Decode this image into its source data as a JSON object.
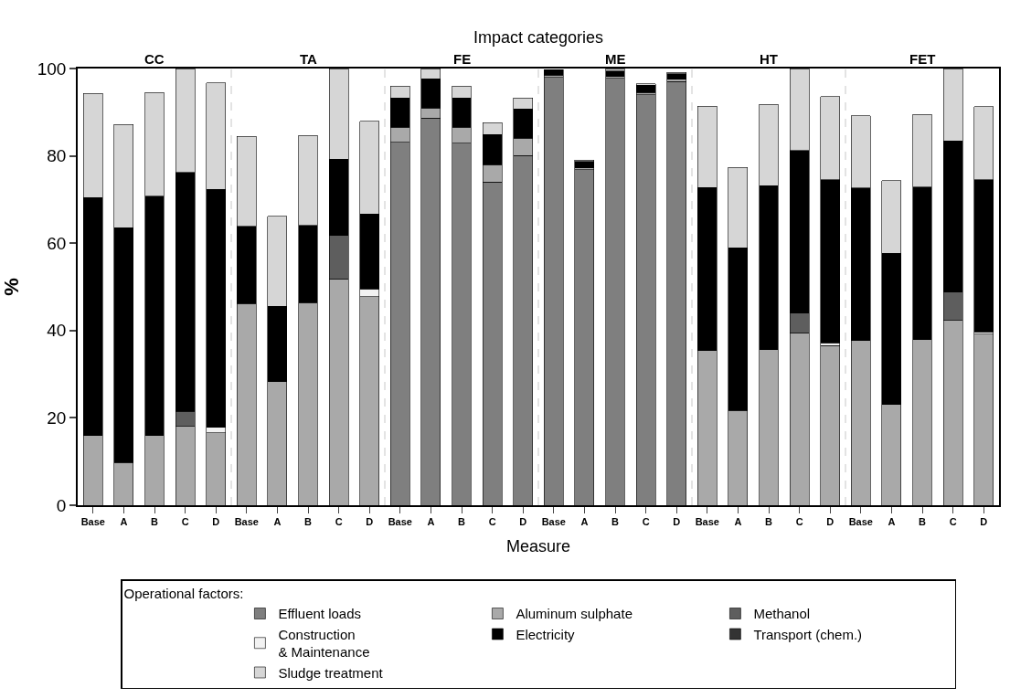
{
  "chart_data": {
    "type": "bar",
    "stacked": true,
    "x2label": "Impact categories",
    "xlabel": "Measure",
    "ylabel": "%",
    "legend_title": "Operational factors:",
    "categories": [
      "Base",
      "A",
      "B",
      "C",
      "D",
      "Base",
      "A",
      "B",
      "C",
      "D",
      "Base",
      "A",
      "B",
      "C",
      "D",
      "Base",
      "A",
      "B",
      "C",
      "D",
      "Base",
      "A",
      "B",
      "C",
      "D",
      "Base",
      "A",
      "B",
      "C",
      "D"
    ],
    "annotations": [
      "CC",
      "TA",
      "FE",
      "ME",
      "HT",
      "FET"
    ],
    "ylim": [
      0,
      100
    ],
    "yticks": [
      0,
      20,
      40,
      60,
      80,
      100
    ],
    "grid": false,
    "legend": "bottom",
    "series": [
      {
        "name": "Effluent loads",
        "color": "#7f7f7f",
        "values": [
          null,
          null,
          null,
          null,
          null,
          null,
          null,
          null,
          null,
          null,
          83.1,
          88.7,
          82.9,
          74,
          80.1,
          98,
          76.8,
          97.7,
          94,
          97,
          null,
          null,
          null,
          null,
          null,
          null,
          null,
          null,
          null,
          null
        ]
      },
      {
        "name": "Aluminum sulphate",
        "color": "#a9a9a9",
        "values": [
          16,
          9.8,
          16,
          18,
          16.6,
          46.2,
          28.3,
          46.4,
          51.8,
          47.8,
          3.5,
          2.3,
          3.7,
          4,
          3.9,
          0.5,
          0.4,
          0.5,
          0.5,
          0.5,
          35.4,
          21.7,
          35.6,
          39.5,
          36.6,
          37.7,
          23.1,
          37.9,
          42.3,
          39.2
        ]
      },
      {
        "name": "Methanol",
        "color": "#5e5e5e",
        "values": [
          null,
          null,
          null,
          3.5,
          null,
          null,
          null,
          null,
          10,
          null,
          null,
          null,
          null,
          null,
          null,
          null,
          null,
          null,
          null,
          null,
          null,
          null,
          null,
          4.5,
          null,
          null,
          null,
          null,
          6.5,
          null
        ]
      },
      {
        "name": "Construction\n& Maintenance",
        "color": "#f2f2f2",
        "values": [
          null,
          null,
          null,
          null,
          1.2,
          null,
          null,
          null,
          null,
          1.7,
          null,
          null,
          null,
          null,
          null,
          null,
          null,
          null,
          null,
          null,
          null,
          null,
          null,
          null,
          0.6,
          null,
          null,
          null,
          null,
          0.5
        ]
      },
      {
        "name": "Electricity",
        "color": "#000000",
        "values": [
          54.5,
          53.7,
          54.8,
          54.7,
          54.5,
          17.7,
          17.3,
          17.7,
          17.4,
          17.2,
          6.7,
          6.6,
          6.7,
          6.9,
          6.7,
          1.2,
          1.5,
          1.2,
          1.7,
          1.3,
          37.4,
          37.2,
          37.6,
          37.2,
          37.3,
          34.9,
          34.6,
          35,
          34.6,
          34.8
        ]
      },
      {
        "name": "Transport (chem.)",
        "color": "#333333",
        "values": [
          null,
          null,
          null,
          null,
          null,
          null,
          null,
          null,
          null,
          null,
          null,
          null,
          null,
          null,
          null,
          null,
          null,
          null,
          null,
          null,
          null,
          null,
          null,
          null,
          null,
          null,
          null,
          null,
          null,
          null
        ]
      },
      {
        "name": "Sludge treatment",
        "color": "#d6d6d6",
        "values": [
          23.8,
          23.7,
          23.7,
          23.8,
          24.4,
          20.6,
          20.6,
          20.6,
          20.8,
          21.2,
          2.7,
          2.4,
          2.7,
          2.7,
          2.6,
          null,
          0.3,
          0.5,
          0.3,
          0.3,
          18.6,
          18.5,
          18.6,
          18.8,
          19.1,
          16.6,
          16.6,
          16.6,
          16.6,
          16.8
        ]
      }
    ]
  }
}
